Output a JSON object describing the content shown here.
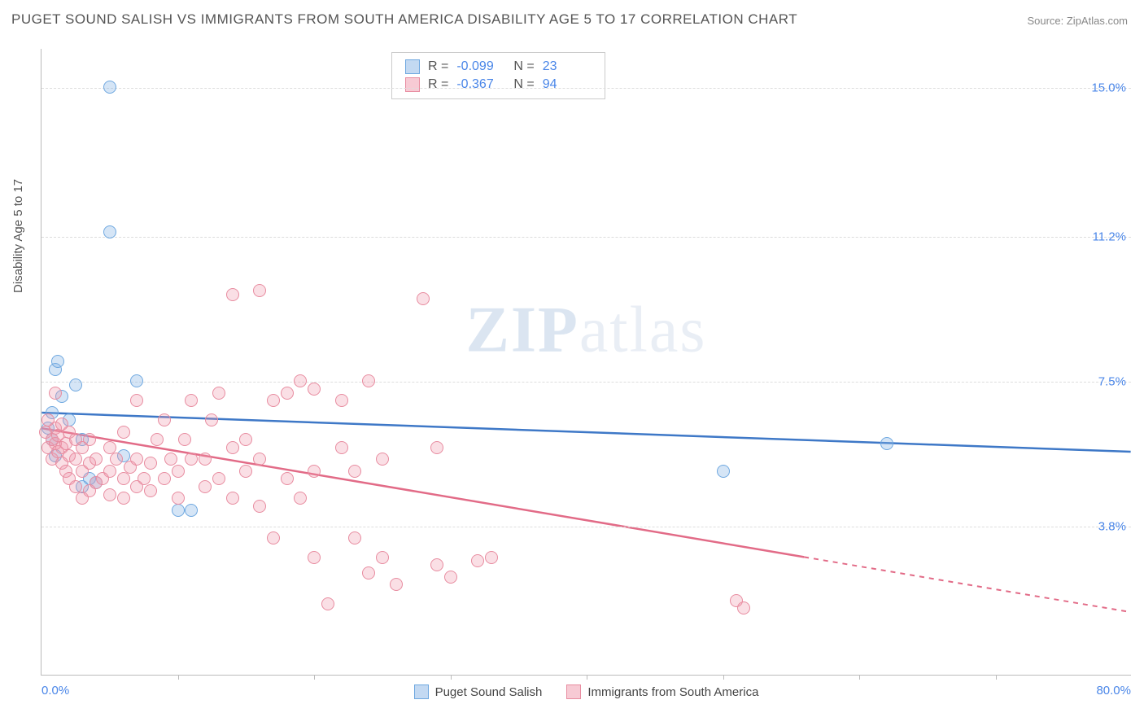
{
  "title": "PUGET SOUND SALISH VS IMMIGRANTS FROM SOUTH AMERICA DISABILITY AGE 5 TO 17 CORRELATION CHART",
  "source_label": "Source: ZipAtlas.com",
  "y_axis_title": "Disability Age 5 to 17",
  "watermark": {
    "bold": "ZIP",
    "light": "atlas"
  },
  "chart": {
    "type": "scatter-correlation",
    "xlim": [
      0,
      80
    ],
    "ylim": [
      0,
      16
    ],
    "background_color": "#ffffff",
    "grid_color": "#dddddd",
    "x_labels": [
      {
        "pct": 0,
        "text": "0.0%",
        "align": "left"
      },
      {
        "pct": 100,
        "text": "80.0%",
        "align": "right"
      }
    ],
    "y_grid": [
      {
        "val": 3.8,
        "text": "3.8%"
      },
      {
        "val": 7.5,
        "text": "7.5%"
      },
      {
        "val": 11.2,
        "text": "11.2%"
      },
      {
        "val": 15.0,
        "text": "15.0%"
      }
    ],
    "x_ticks": [
      10,
      20,
      30,
      40,
      50,
      60,
      70
    ],
    "series": [
      {
        "name": "Puget Sound Salish",
        "color_fill": "rgba(135,180,230,0.35)",
        "color_stroke": "#6fa8e0",
        "line_color": "#3e78c7",
        "R": "-0.099",
        "N": "23",
        "trend": {
          "x1": 0,
          "y1": 6.7,
          "x2": 80,
          "y2": 5.7,
          "dash_after_x": 80
        },
        "points": [
          [
            0.5,
            6.3
          ],
          [
            0.8,
            6.0
          ],
          [
            0.8,
            6.7
          ],
          [
            1.0,
            7.8
          ],
          [
            1.0,
            5.6
          ],
          [
            1.2,
            8.0
          ],
          [
            1.5,
            7.1
          ],
          [
            2.0,
            6.5
          ],
          [
            2.5,
            7.4
          ],
          [
            3.0,
            4.8
          ],
          [
            3.0,
            6.0
          ],
          [
            3.5,
            5.0
          ],
          [
            4.0,
            4.9
          ],
          [
            5.0,
            15.0
          ],
          [
            5.0,
            11.3
          ],
          [
            6.0,
            5.6
          ],
          [
            7.0,
            7.5
          ],
          [
            10.0,
            4.2
          ],
          [
            11.0,
            4.2
          ],
          [
            50.0,
            5.2
          ],
          [
            62.0,
            5.9
          ]
        ]
      },
      {
        "name": "Immigrants from South America",
        "color_fill": "rgba(240,150,170,0.3)",
        "color_stroke": "#e88ca0",
        "line_color": "#e26b87",
        "R": "-0.367",
        "N": "94",
        "trend": {
          "x1": 0,
          "y1": 6.3,
          "x2": 80,
          "y2": 1.6,
          "dash_after_x": 56
        },
        "points": [
          [
            0.3,
            6.2
          ],
          [
            0.5,
            5.8
          ],
          [
            0.5,
            6.5
          ],
          [
            0.8,
            5.5
          ],
          [
            0.8,
            6.0
          ],
          [
            1.0,
            5.9
          ],
          [
            1.0,
            6.3
          ],
          [
            1.0,
            7.2
          ],
          [
            1.2,
            5.7
          ],
          [
            1.2,
            6.1
          ],
          [
            1.5,
            5.4
          ],
          [
            1.5,
            5.8
          ],
          [
            1.5,
            6.4
          ],
          [
            1.8,
            5.2
          ],
          [
            1.8,
            5.9
          ],
          [
            2.0,
            5.0
          ],
          [
            2.0,
            5.6
          ],
          [
            2.0,
            6.2
          ],
          [
            2.5,
            4.8
          ],
          [
            2.5,
            5.5
          ],
          [
            2.5,
            6.0
          ],
          [
            3.0,
            4.5
          ],
          [
            3.0,
            5.2
          ],
          [
            3.0,
            5.8
          ],
          [
            3.5,
            4.7
          ],
          [
            3.5,
            5.4
          ],
          [
            3.5,
            6.0
          ],
          [
            4.0,
            4.9
          ],
          [
            4.0,
            5.5
          ],
          [
            4.5,
            5.0
          ],
          [
            5.0,
            4.6
          ],
          [
            5.0,
            5.2
          ],
          [
            5.0,
            5.8
          ],
          [
            5.5,
            5.5
          ],
          [
            6.0,
            4.5
          ],
          [
            6.0,
            5.0
          ],
          [
            6.0,
            6.2
          ],
          [
            6.5,
            5.3
          ],
          [
            7.0,
            4.8
          ],
          [
            7.0,
            5.5
          ],
          [
            7.0,
            7.0
          ],
          [
            7.5,
            5.0
          ],
          [
            8.0,
            4.7
          ],
          [
            8.0,
            5.4
          ],
          [
            8.5,
            6.0
          ],
          [
            9.0,
            5.0
          ],
          [
            9.0,
            6.5
          ],
          [
            9.5,
            5.5
          ],
          [
            10.0,
            4.5
          ],
          [
            10.0,
            5.2
          ],
          [
            10.5,
            6.0
          ],
          [
            11.0,
            5.5
          ],
          [
            11.0,
            7.0
          ],
          [
            12.0,
            4.8
          ],
          [
            12.0,
            5.5
          ],
          [
            12.5,
            6.5
          ],
          [
            13.0,
            5.0
          ],
          [
            13.0,
            7.2
          ],
          [
            14.0,
            4.5
          ],
          [
            14.0,
            5.8
          ],
          [
            14.0,
            9.7
          ],
          [
            15.0,
            5.2
          ],
          [
            15.0,
            6.0
          ],
          [
            16.0,
            4.3
          ],
          [
            16.0,
            5.5
          ],
          [
            16.0,
            9.8
          ],
          [
            17.0,
            7.0
          ],
          [
            17.0,
            3.5
          ],
          [
            18.0,
            5.0
          ],
          [
            18.0,
            7.2
          ],
          [
            19.0,
            4.5
          ],
          [
            19.0,
            7.5
          ],
          [
            20.0,
            3.0
          ],
          [
            20.0,
            5.2
          ],
          [
            20.0,
            7.3
          ],
          [
            21.0,
            1.8
          ],
          [
            22.0,
            5.8
          ],
          [
            22.0,
            7.0
          ],
          [
            23.0,
            3.5
          ],
          [
            23.0,
            5.2
          ],
          [
            24.0,
            2.6
          ],
          [
            24.0,
            7.5
          ],
          [
            25.0,
            3.0
          ],
          [
            25.0,
            5.5
          ],
          [
            26.0,
            2.3
          ],
          [
            28.0,
            9.6
          ],
          [
            29.0,
            2.8
          ],
          [
            29.0,
            5.8
          ],
          [
            30.0,
            2.5
          ],
          [
            32.0,
            2.9
          ],
          [
            33.0,
            3.0
          ],
          [
            51.0,
            1.9
          ],
          [
            51.5,
            1.7
          ]
        ]
      }
    ]
  }
}
